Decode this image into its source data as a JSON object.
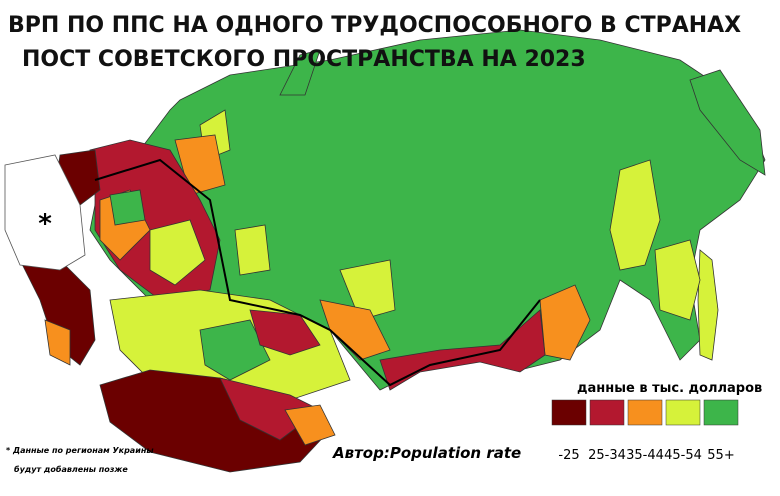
{
  "title": [
    "ВРП ПО ППС НА ОДНОГО ТРУДОСПОСОБНОГО В СТРАНАХ",
    "ПОСТ СОВЕТСКОГО ПРОСТРАНСТВА НА 2023"
  ],
  "legend": {
    "title": "данные в тыс. долларов",
    "items": [
      {
        "label": "-25",
        "color": "#6b0000"
      },
      {
        "label": "25-34",
        "color": "#b3182f"
      },
      {
        "label": "35-44",
        "color": "#f7901e"
      },
      {
        "label": "45-54",
        "color": "#d6f23a"
      },
      {
        "label": "55+",
        "color": "#3db54a"
      }
    ]
  },
  "map_marker": "*",
  "note": [
    "* Данные по регионам Украины",
    "будут добавлены позже"
  ],
  "author": "Автор:Population rate"
}
